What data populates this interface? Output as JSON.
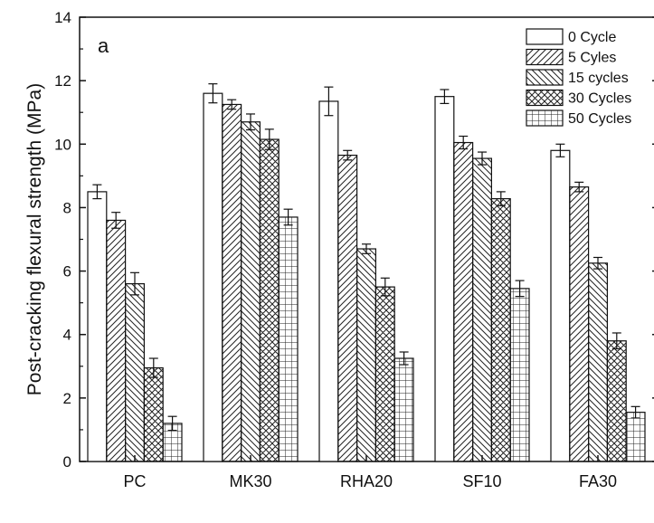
{
  "chart_data": {
    "type": "bar",
    "panel_label": "a",
    "ylabel": "Post-cracking flexural strength (MPa)",
    "xlabel": "",
    "ylim": [
      0,
      14
    ],
    "yticks": [
      "0",
      "2",
      "4",
      "6",
      "8",
      "10",
      "12",
      "14"
    ],
    "grid": false,
    "legend_position": "top-right",
    "categories": [
      "PC",
      "MK30",
      "RHA20",
      "SF10",
      "FA30"
    ],
    "series": [
      {
        "name": "0 Cycle",
        "pattern": "plain",
        "values": [
          8.5,
          11.6,
          11.35,
          11.5,
          9.8
        ],
        "errors": [
          0.22,
          0.3,
          0.45,
          0.22,
          0.2
        ]
      },
      {
        "name": "5 Cyles",
        "pattern": "diag",
        "values": [
          7.6,
          11.25,
          9.65,
          10.05,
          8.65
        ],
        "errors": [
          0.25,
          0.15,
          0.15,
          0.2,
          0.15
        ]
      },
      {
        "name": "15 cycles",
        "pattern": "backdiag",
        "values": [
          5.6,
          10.7,
          6.7,
          9.55,
          6.25
        ],
        "errors": [
          0.35,
          0.25,
          0.15,
          0.2,
          0.18
        ]
      },
      {
        "name": "30 Cycles",
        "pattern": "cross",
        "values": [
          2.95,
          10.15,
          5.5,
          8.28,
          3.8
        ],
        "errors": [
          0.3,
          0.32,
          0.28,
          0.22,
          0.25
        ]
      },
      {
        "name": "50 Cycles",
        "pattern": "grid",
        "values": [
          1.2,
          7.7,
          3.25,
          5.45,
          1.55
        ],
        "errors": [
          0.22,
          0.25,
          0.2,
          0.25,
          0.18
        ]
      }
    ]
  }
}
